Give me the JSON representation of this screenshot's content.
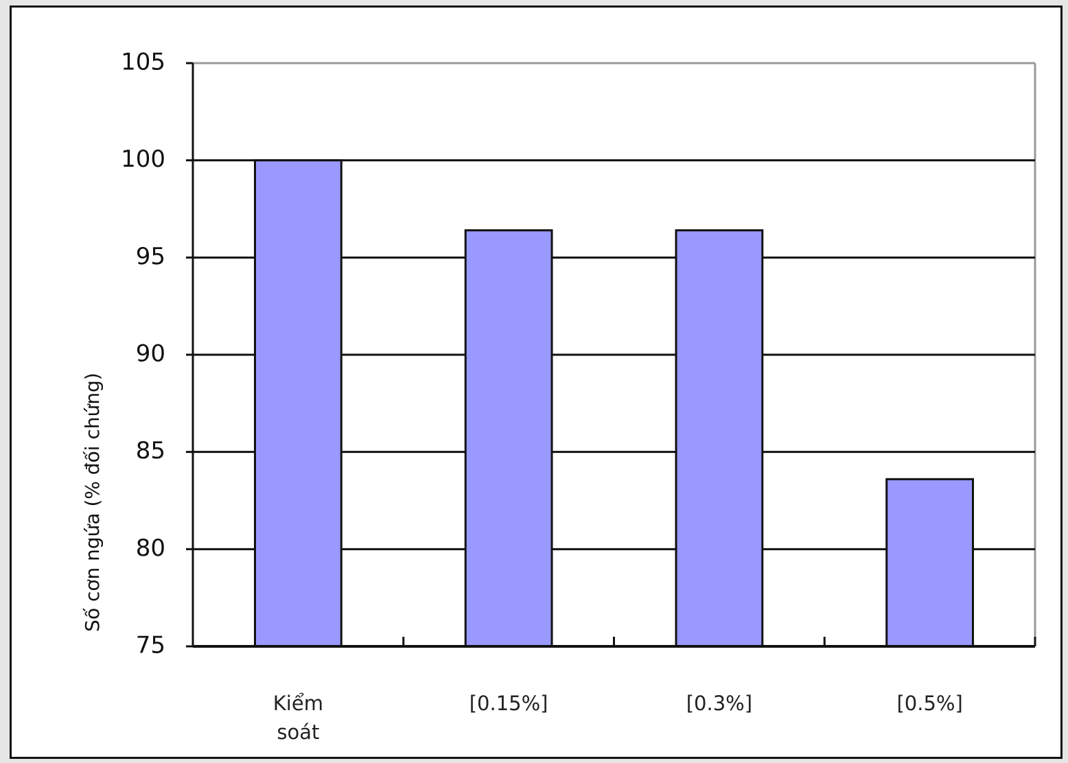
{
  "chart_data": {
    "type": "bar",
    "y_label": "Số cơn ngứa (% đối chứng)",
    "categories": [
      "Kiểm soát",
      "[0.15%]",
      "[0.3%]",
      "[0.5%]"
    ],
    "values": [
      100,
      96.4,
      96.4,
      83.6
    ],
    "color": "#9999ff",
    "ylim": [
      75,
      105
    ],
    "yticks": [
      75,
      80,
      85,
      90,
      95,
      100,
      105
    ],
    "grid": true
  }
}
